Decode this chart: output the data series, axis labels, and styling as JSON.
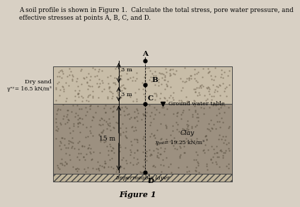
{
  "title_line1": "A soil profile is shown in Figure 1.  Calculate the total stress, pore water pressure, and",
  "title_line2": "effective stresses at points A, B, C, and D.",
  "figure_label": "Figure 1",
  "page_bg": "#d8d0c4",
  "sand_color": "#c8bda8",
  "clay_color": "#9c9080",
  "imperm_color": "#c0b49a",
  "dry_sand_label": "Dry sand",
  "dry_sand_gamma": "γᵉʸ= 16.5 kN/m³",
  "clay_label": "Clay",
  "clay_gamma": "γₛₐₜ= 19.25 kN/m³",
  "gwt_label": "Ground water table",
  "impermeable_label": "Impermeable layer",
  "depth_top_sand": "3 m",
  "depth_bottom_sand": "3 m",
  "depth_clay": "15 m"
}
